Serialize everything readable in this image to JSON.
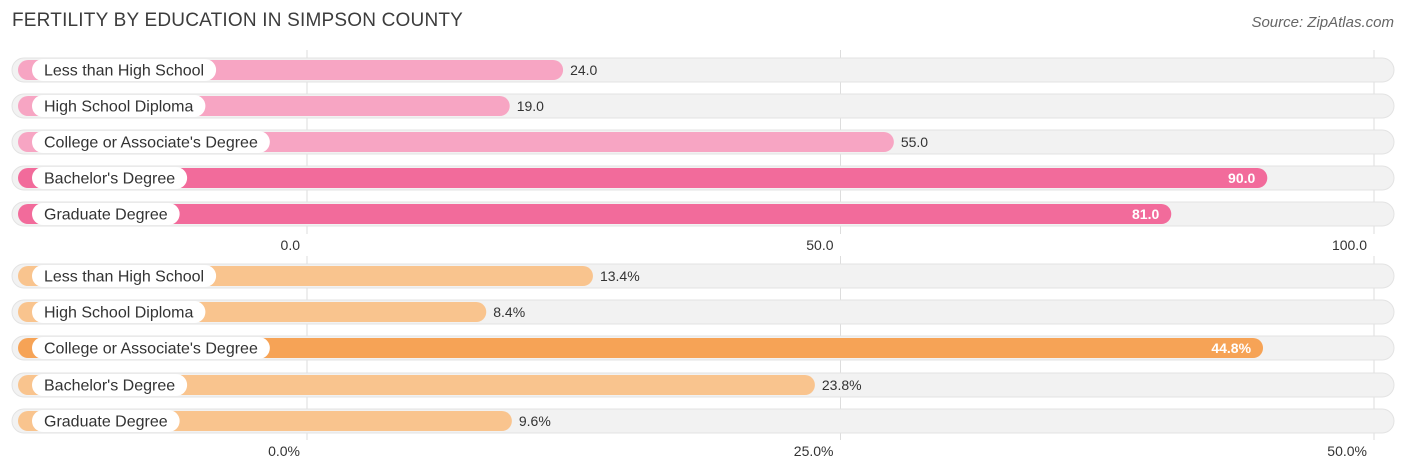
{
  "header": {
    "title": "FERTILITY BY EDUCATION IN SIMPSON COUNTY",
    "source": "Source: ZipAtlas.com"
  },
  "chart_data": [
    {
      "type": "bar",
      "orientation": "horizontal",
      "categories": [
        "Less than High School",
        "High School Diploma",
        "College or Associate's Degree",
        "Bachelor's Degree",
        "Graduate Degree"
      ],
      "values": [
        24.0,
        19.0,
        55.0,
        90.0,
        81.0
      ],
      "value_labels": [
        "24.0",
        "19.0",
        "55.0",
        "90.0",
        "81.0"
      ],
      "xlim": [
        0,
        100
      ],
      "ticks": [
        0,
        50,
        100
      ],
      "tick_labels": [
        "0.0",
        "50.0",
        "100.0"
      ],
      "colors": {
        "light": "#f7a5c3",
        "strong": "#f26b9b"
      }
    },
    {
      "type": "bar",
      "orientation": "horizontal",
      "categories": [
        "Less than High School",
        "High School Diploma",
        "College or Associate's Degree",
        "Bachelor's Degree",
        "Graduate Degree"
      ],
      "values": [
        13.4,
        8.4,
        44.8,
        23.8,
        9.6
      ],
      "value_labels": [
        "13.4%",
        "8.4%",
        "44.8%",
        "23.8%",
        "9.6%"
      ],
      "xlim": [
        0,
        50
      ],
      "ticks": [
        0,
        25,
        50
      ],
      "tick_labels": [
        "0.0%",
        "25.0%",
        "50.0%"
      ],
      "colors": {
        "light": "#f9c48e",
        "strong": "#f6a356"
      }
    }
  ]
}
